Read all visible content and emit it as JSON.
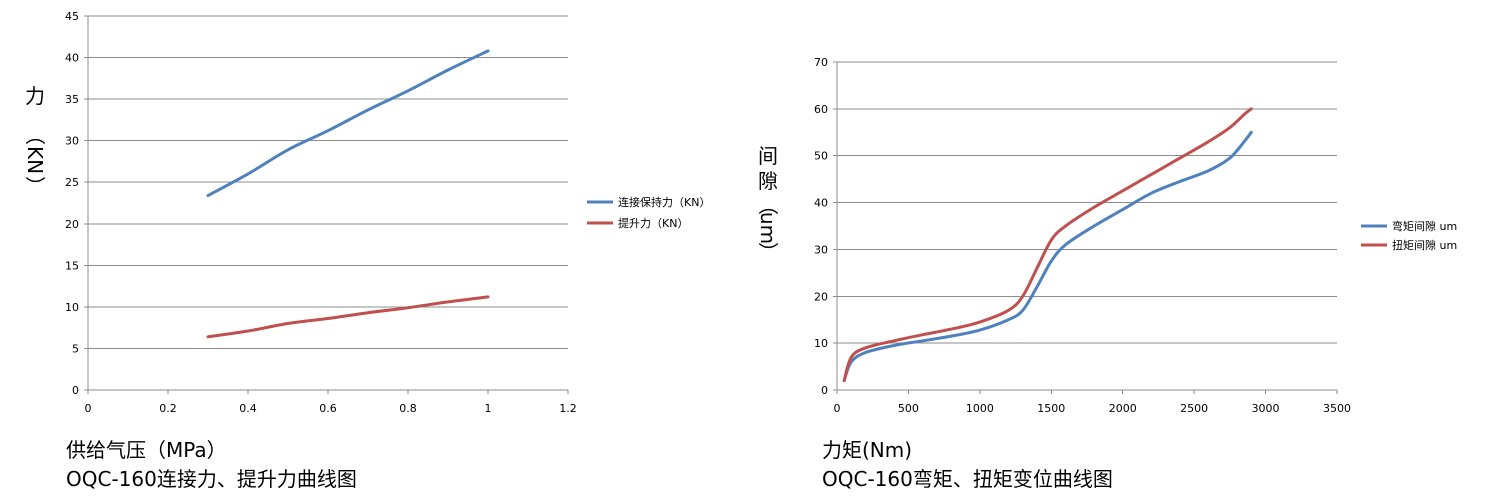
{
  "chart_data": [
    {
      "type": "line",
      "xlabel": "供给气压（MPa）",
      "caption": "OQC-160连接力、提升力曲线图",
      "ylabel_chars": [
        "力",
        "（",
        "KN",
        "）"
      ],
      "xlim": [
        0,
        1.2
      ],
      "ylim": [
        0,
        45
      ],
      "xticks": [
        0,
        0.2,
        0.4,
        0.6,
        0.8,
        1,
        1.2
      ],
      "xtick_labels": [
        "0",
        "0.2",
        "0.4",
        "0.6",
        "0.8",
        "1",
        "1.2"
      ],
      "yticks": [
        0,
        5,
        10,
        15,
        20,
        25,
        30,
        35,
        40,
        45
      ],
      "grid": true,
      "legend": "right",
      "series": [
        {
          "name": "连接保持力（KN）",
          "color": "#4f81bd",
          "x": [
            0.3,
            0.4,
            0.5,
            0.6,
            0.7,
            0.8,
            0.9,
            1.0
          ],
          "y": [
            23.4,
            26.0,
            28.9,
            31.2,
            33.7,
            36.0,
            38.5,
            40.8
          ]
        },
        {
          "name": "提升力（KN）",
          "color": "#c0504d",
          "x": [
            0.3,
            0.4,
            0.5,
            0.6,
            0.7,
            0.8,
            0.9,
            1.0
          ],
          "y": [
            6.4,
            7.1,
            8.0,
            8.6,
            9.3,
            9.9,
            10.6,
            11.2
          ]
        }
      ]
    },
    {
      "type": "line",
      "xlabel": "力矩(Nm)",
      "caption": "OQC-160弯矩、扭矩变位曲线图",
      "ylabel_chars": [
        "间",
        "隙",
        "（",
        "um",
        "）"
      ],
      "xlim": [
        0,
        3500
      ],
      "ylim": [
        0,
        70
      ],
      "xticks": [
        0,
        500,
        1000,
        1500,
        2000,
        2500,
        3000,
        3500
      ],
      "xtick_labels": [
        "0",
        "500",
        "1000",
        "1500",
        "2000",
        "2500",
        "3000",
        "3500"
      ],
      "yticks": [
        0,
        10,
        20,
        30,
        40,
        50,
        60,
        70
      ],
      "grid": true,
      "legend": "right",
      "series": [
        {
          "name": "弯矩间隙 um",
          "color": "#4f81bd",
          "x": [
            50,
            100,
            200,
            400,
            600,
            800,
            1000,
            1200,
            1300,
            1400,
            1500,
            1600,
            1800,
            2000,
            2200,
            2400,
            2600,
            2750,
            2850,
            2900
          ],
          "y": [
            2,
            6,
            8,
            9.5,
            10.5,
            11.5,
            12.8,
            15,
            17,
            22,
            27.5,
            31,
            35,
            38.5,
            42,
            44.5,
            46.8,
            49.5,
            53,
            55
          ]
        },
        {
          "name": "扭矩间隙 um",
          "color": "#c0504d",
          "x": [
            50,
            100,
            200,
            400,
            600,
            800,
            1000,
            1200,
            1300,
            1400,
            1500,
            1600,
            1800,
            2000,
            2200,
            2400,
            2600,
            2750,
            2850,
            2900
          ],
          "y": [
            2,
            7,
            9,
            10.5,
            11.8,
            13,
            14.5,
            17,
            20,
            26,
            32,
            35,
            39,
            42.5,
            46,
            49.5,
            53,
            56,
            58.8,
            60
          ]
        }
      ]
    }
  ]
}
